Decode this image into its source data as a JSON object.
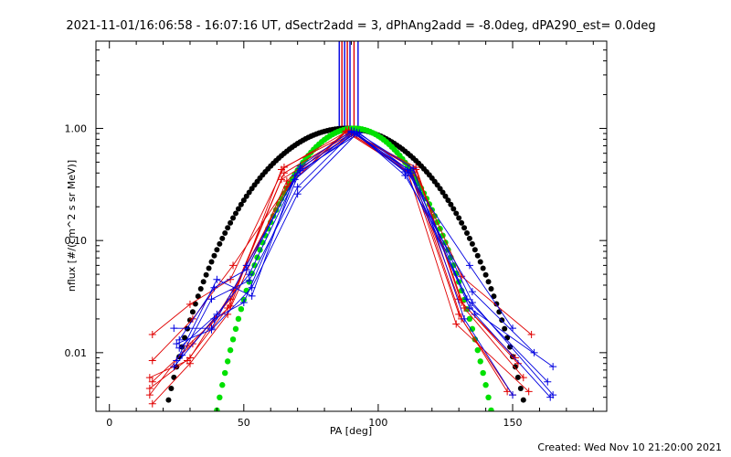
{
  "chart_data": {
    "type": "line",
    "title": "2021-11-01/16:06:58 - 16:07:16 UT, dSectr2add = 3, dPhAng2add = -8.0deg, dPA290_est=  0.0deg",
    "xlabel": "PA [deg]",
    "ylabel": "nflux [#/(cm^2 s sr MeV)]",
    "xlim": [
      -5,
      185
    ],
    "ylim": [
      0.003,
      6
    ],
    "yscale": "log",
    "x_ticks": [
      0,
      50,
      100,
      150
    ],
    "x_tick_labels": [
      "0",
      "50",
      "100",
      "150"
    ],
    "y_ticks": [
      0.01,
      0.1,
      1.0
    ],
    "y_tick_labels": [
      "0.01",
      "0.10",
      "1.00"
    ],
    "footer": "Created: Wed Nov 10 21:20:00 2021",
    "colors": {
      "red": "#e00000",
      "blue": "#0000e0",
      "black": "#000000",
      "green": "#00e000",
      "axis": "#000000"
    },
    "vertical_lines": [
      {
        "x": 85.5,
        "color": "#0000e0"
      },
      {
        "x": 86.5,
        "color": "#e00000"
      },
      {
        "x": 87.5,
        "color": "#0000e0"
      },
      {
        "x": 88.5,
        "color": "#e00000"
      },
      {
        "x": 89.5,
        "color": "#0000e0"
      },
      {
        "x": 91.0,
        "color": "#e00000"
      },
      {
        "x": 92.5,
        "color": "#0000e0"
      }
    ],
    "series": [
      {
        "color": "#e00000",
        "points": [
          [
            16,
            0.0145
          ],
          [
            30,
            0.027
          ],
          [
            45,
            0.045
          ],
          [
            65,
            0.45
          ],
          [
            90,
            0.92
          ],
          [
            113,
            0.44
          ],
          [
            131,
            0.048
          ],
          [
            157,
            0.0145
          ]
        ]
      },
      {
        "color": "#e00000",
        "points": [
          [
            16,
            0.0085
          ],
          [
            31,
            0.02
          ],
          [
            46,
            0.06
          ],
          [
            66,
            0.3
          ],
          [
            88,
            0.95
          ],
          [
            112,
            0.42
          ],
          [
            130,
            0.03
          ],
          [
            152,
            0.008
          ]
        ]
      },
      {
        "color": "#e00000",
        "points": [
          [
            15,
            0.006
          ],
          [
            29,
            0.0085
          ],
          [
            44,
            0.025
          ],
          [
            64,
            0.35
          ],
          [
            91,
            0.89
          ],
          [
            114,
            0.45
          ],
          [
            132,
            0.025
          ],
          [
            154,
            0.006
          ]
        ]
      },
      {
        "color": "#e00000",
        "points": [
          [
            15,
            0.0048
          ],
          [
            30,
            0.009
          ],
          [
            46,
            0.036
          ],
          [
            67,
            0.32
          ],
          [
            89,
            0.97
          ],
          [
            111,
            0.41
          ],
          [
            129,
            0.018
          ],
          [
            156,
            0.0045
          ]
        ]
      },
      {
        "color": "#e00000",
        "points": [
          [
            16,
            0.0055
          ],
          [
            31,
            0.012
          ],
          [
            45,
            0.03
          ],
          [
            65,
            0.4
          ],
          [
            90,
            0.9
          ],
          [
            113,
            0.38
          ],
          [
            131,
            0.02
          ],
          [
            150,
            0.0042
          ]
        ]
      },
      {
        "color": "#e00000",
        "points": [
          [
            16,
            0.0035
          ],
          [
            30,
            0.008
          ],
          [
            44,
            0.022
          ],
          [
            66,
            0.34
          ],
          [
            88,
            0.93
          ],
          [
            112,
            0.4
          ],
          [
            130,
            0.022
          ],
          [
            148,
            0.0045
          ]
        ]
      },
      {
        "color": "#e00000",
        "points": [
          [
            15,
            0.0042
          ],
          [
            29,
            0.0115
          ],
          [
            45,
            0.026
          ],
          [
            64,
            0.43
          ],
          [
            89,
            0.96
          ],
          [
            114,
            0.43
          ],
          [
            131,
            0.028
          ],
          [
            151,
            0.009
          ]
        ]
      },
      {
        "color": "#0000e0",
        "points": [
          [
            24,
            0.0165
          ],
          [
            38,
            0.0165
          ],
          [
            51,
            0.06
          ],
          [
            71,
            0.44
          ],
          [
            91,
            0.92
          ],
          [
            111,
            0.4
          ],
          [
            134,
            0.06
          ],
          [
            150,
            0.0165
          ]
        ]
      },
      {
        "color": "#0000e0",
        "points": [
          [
            25,
            0.012
          ],
          [
            38,
            0.016
          ],
          [
            53,
            0.038
          ],
          [
            70,
            0.26
          ],
          [
            92,
            0.9
          ],
          [
            110,
            0.38
          ],
          [
            135,
            0.035
          ],
          [
            158,
            0.01
          ]
        ]
      },
      {
        "color": "#0000e0",
        "points": [
          [
            26,
            0.011
          ],
          [
            40,
            0.022
          ],
          [
            52,
            0.05
          ],
          [
            69,
            0.35
          ],
          [
            90,
            0.93
          ],
          [
            112,
            0.42
          ],
          [
            133,
            0.03
          ],
          [
            163,
            0.0055
          ]
        ]
      },
      {
        "color": "#0000e0",
        "points": [
          [
            24,
            0.0075
          ],
          [
            39,
            0.02
          ],
          [
            50,
            0.028
          ],
          [
            71,
            0.42
          ],
          [
            93,
            0.91
          ],
          [
            111,
            0.43
          ],
          [
            134,
            0.025
          ],
          [
            165,
            0.0075
          ]
        ]
      },
      {
        "color": "#0000e0",
        "points": [
          [
            27,
            0.0095
          ],
          [
            38,
            0.03
          ],
          [
            52,
            0.044
          ],
          [
            70,
            0.3
          ],
          [
            91,
            0.94
          ],
          [
            112,
            0.4
          ],
          [
            135,
            0.028
          ],
          [
            165,
            0.0042
          ]
        ]
      },
      {
        "color": "#0000e0",
        "points": [
          [
            25,
            0.0085
          ],
          [
            40,
            0.045
          ],
          [
            53,
            0.032
          ],
          [
            69,
            0.38
          ],
          [
            92,
            0.92
          ],
          [
            113,
            0.44
          ],
          [
            132,
            0.02
          ],
          [
            150,
            0.0042
          ]
        ]
      },
      {
        "color": "#0000e0",
        "points": [
          [
            26,
            0.013
          ],
          [
            39,
            0.038
          ],
          [
            51,
            0.055
          ],
          [
            71,
            0.46
          ],
          [
            90,
            0.95
          ],
          [
            110,
            0.41
          ],
          [
            136,
            0.022
          ],
          [
            164,
            0.004
          ]
        ]
      }
    ],
    "fit_black": {
      "color": "#000000",
      "x_range": [
        20,
        155
      ],
      "center": 88,
      "n": 6.2,
      "peak": 1.0
    },
    "fit_green": {
      "color": "#00e000",
      "x_range": [
        36,
        155
      ],
      "center": 91,
      "n": 12.5,
      "peak": 1.0
    }
  }
}
